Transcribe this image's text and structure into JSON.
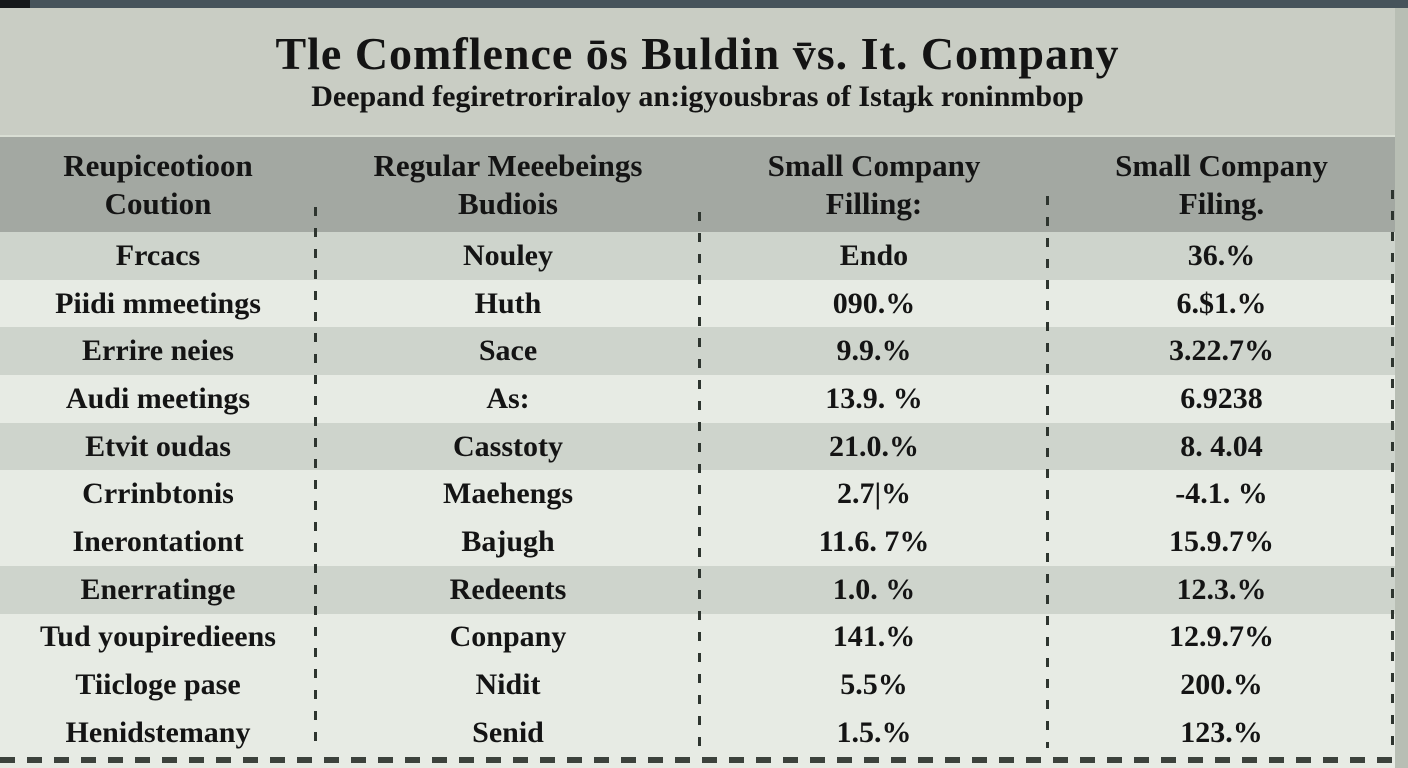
{
  "header": {
    "title": "Tle Comflence ōs Buldin v̄s. It. Company",
    "subtitle": "Deepand fegiretroriraloy an:igyousbras of Istaɟk roninmbop"
  },
  "table": {
    "columns": [
      {
        "line1": "Reupiceotioon",
        "line2": "Coution"
      },
      {
        "line1": "Regular Meeebeings",
        "line2": "Budiois"
      },
      {
        "line1": "Small Company",
        "line2": "Filling:"
      },
      {
        "line1": "Small Company",
        "line2": "Filing."
      }
    ],
    "rows": [
      {
        "cells": [
          "Frcacs",
          "Nouley",
          "Endo",
          "36.%"
        ]
      },
      {
        "cells": [
          "Piidi mmeetings",
          "Huth",
          "090.%",
          "6.$1.%"
        ]
      },
      {
        "cells": [
          "Errire neies",
          "Sace",
          "9.9.%",
          "3.22.7%"
        ]
      },
      {
        "cells": [
          "Audi meetings",
          "As:",
          "13.9. %",
          "6.9238"
        ]
      },
      {
        "cells": [
          "Etvit oudas",
          "Casstoty",
          "21.0.%",
          "8. 4.04"
        ]
      },
      {
        "cells": [
          "Crrinbtonis",
          "Maehengs",
          "2.7|%",
          "-4.1. %"
        ]
      },
      {
        "cells": [
          "Inerontationt",
          "Bajugh",
          "11.6. 7%",
          "15.9.7%"
        ]
      },
      {
        "cells": [
          "Enerratinge",
          "Redeents",
          "1.0. %",
          "12.3.%"
        ]
      },
      {
        "cells": [
          "Tud youpiredieens",
          "Conpany",
          "141.%",
          "12.9.7%"
        ]
      },
      {
        "cells": [
          "Tiicloge pase",
          "Nidit",
          "5.5%",
          "200.%"
        ]
      },
      {
        "cells": [
          "Henidstemany",
          "Senid",
          "1.5.%",
          "123.%"
        ]
      }
    ]
  },
  "colors": {
    "top_bar": "#46535b",
    "corner_block": "#15181a",
    "title_bg": "#c9cdc4",
    "header_bg": "#a3a8a2",
    "row_medium": "#ced4cc",
    "row_light": "#e7ebe4",
    "right_strip": "#b8beb4",
    "text": "#141414",
    "divider": "#2e352f"
  },
  "chart_data": {
    "type": "table",
    "title": "Tle Comflence ōs Buldin v̄s. It. Company",
    "subtitle": "Deepand fegiretroriraloy an:igyousbras of Istaɟk roninmbop",
    "columns": [
      "Reupiceotioon Coution",
      "Regular Meeebeings Budiois",
      "Small Company Filling:",
      "Small Company Filing."
    ],
    "rows": [
      [
        "Frcacs",
        "Nouley",
        "Endo",
        "36.%"
      ],
      [
        "Piidi mmeetings",
        "Huth",
        "090.%",
        "6.$1.%"
      ],
      [
        "Errire neies",
        "Sace",
        "9.9.%",
        "3.22.7%"
      ],
      [
        "Audi meetings",
        "As:",
        "13.9. %",
        "6.9238"
      ],
      [
        "Etvit oudas",
        "Casstoty",
        "21.0.%",
        "8. 4.04"
      ],
      [
        "Crrinbtonis",
        "Maehengs",
        "2.7|%",
        "-4.1. %"
      ],
      [
        "Inerontationt",
        "Bajugh",
        "11.6. 7%",
        "15.9.7%"
      ],
      [
        "Enerratinge",
        "Redeents",
        "1.0. %",
        "12.3.%"
      ],
      [
        "Tud youpiredieens",
        "Conpany",
        "141.%",
        "12.9.7%"
      ],
      [
        "Tiicloge pase",
        "Nidit",
        "5.5%",
        "200.%"
      ],
      [
        "Henidstemany",
        "Senid",
        "1.5.%",
        "123.%"
      ]
    ],
    "layout_hints": {
      "row_stripes": [
        "medium",
        "light",
        "medium",
        "light",
        "medium",
        "light",
        "light",
        "medium",
        "light",
        "light",
        "light"
      ],
      "grid": "dashed-vertical-dividers"
    }
  }
}
